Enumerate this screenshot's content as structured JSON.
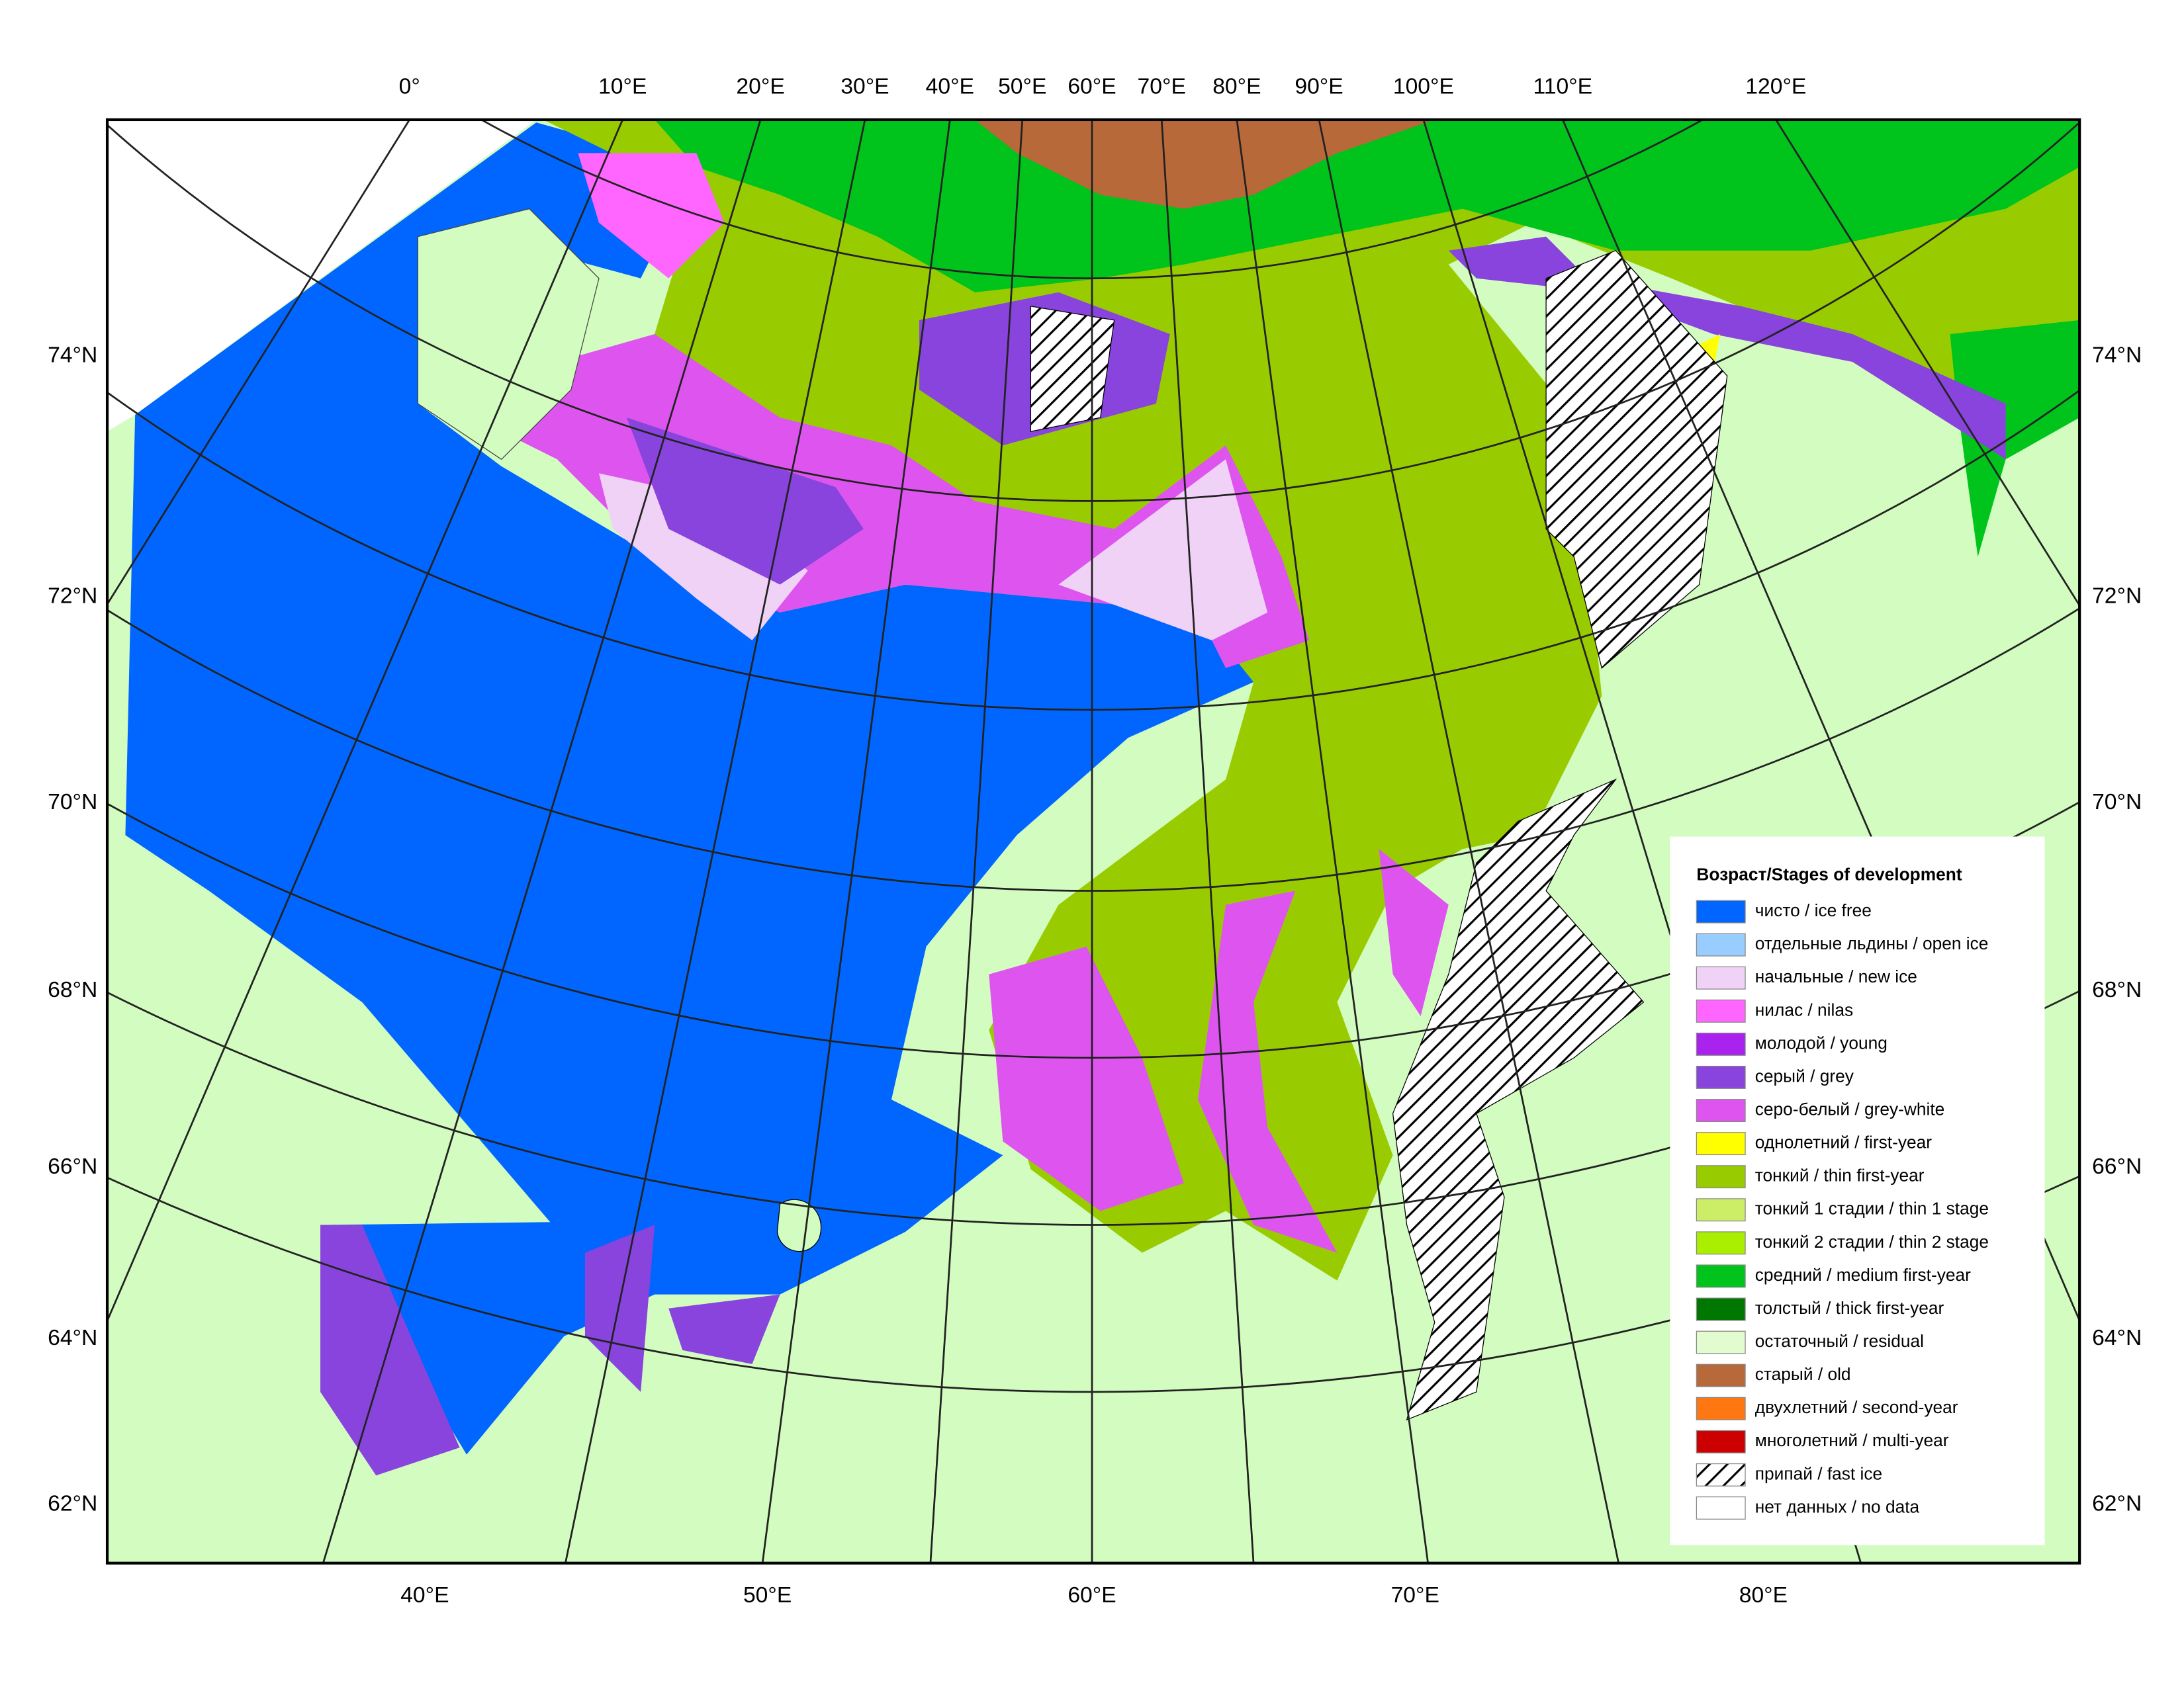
{
  "map": {
    "top_labels": [
      "0°",
      "10°E",
      "20°E",
      "30°E",
      "40°E",
      "50°E",
      "60°E",
      "70°E",
      "80°E",
      "90°E",
      "100°E",
      "110°E",
      "120°E"
    ],
    "left_labels": [
      "74°N",
      "72°N",
      "70°N",
      "68°N",
      "66°N",
      "64°N",
      "62°N"
    ],
    "right_labels": [
      "74°N",
      "72°N",
      "70°N",
      "68°N",
      "66°N",
      "64°N",
      "62°N"
    ],
    "bottom_labels": [
      "40°E",
      "50°E",
      "60°E",
      "70°E",
      "80°E"
    ]
  },
  "legend": {
    "title": "Возраст/Stages of development",
    "items": [
      {
        "label": "чисто / ice free",
        "color": "#0066ff"
      },
      {
        "label": "отдельные льдины / open ice",
        "color": "#99ccff"
      },
      {
        "label": "начальные / new ice",
        "color": "#f0d2f7"
      },
      {
        "label": "нилас / nilas",
        "color": "#ff66ff"
      },
      {
        "label": "молодой / young",
        "color": "#aa22ee"
      },
      {
        "label": "серый / grey",
        "color": "#8844dd"
      },
      {
        "label": "серо-белый / grey-white",
        "color": "#dd55ee"
      },
      {
        "label": "однолетний / first-year",
        "color": "#ffff00"
      },
      {
        "label": "тонкий / thin first-year",
        "color": "#99cc00"
      },
      {
        "label": "тонкий 1 стадии / thin 1 stage",
        "color": "#ccee66"
      },
      {
        "label": "тонкий 2 стадии / thin 2 stage",
        "color": "#aaee00"
      },
      {
        "label": "средний / medium first-year",
        "color": "#00c41c"
      },
      {
        "label": "толстый / thick first-year",
        "color": "#007700"
      },
      {
        "label": "остаточный / residual",
        "color": "#e2fcd0"
      },
      {
        "label": "старый / old",
        "color": "#b8693a"
      },
      {
        "label": "двухлетний / second-year",
        "color": "#ff7711"
      },
      {
        "label": "многолетний / multi-year",
        "color": "#cc0000"
      },
      {
        "label": "припай / fast ice"
      },
      {
        "label": "нет данных / no data",
        "color": "#ffffff"
      }
    ]
  }
}
